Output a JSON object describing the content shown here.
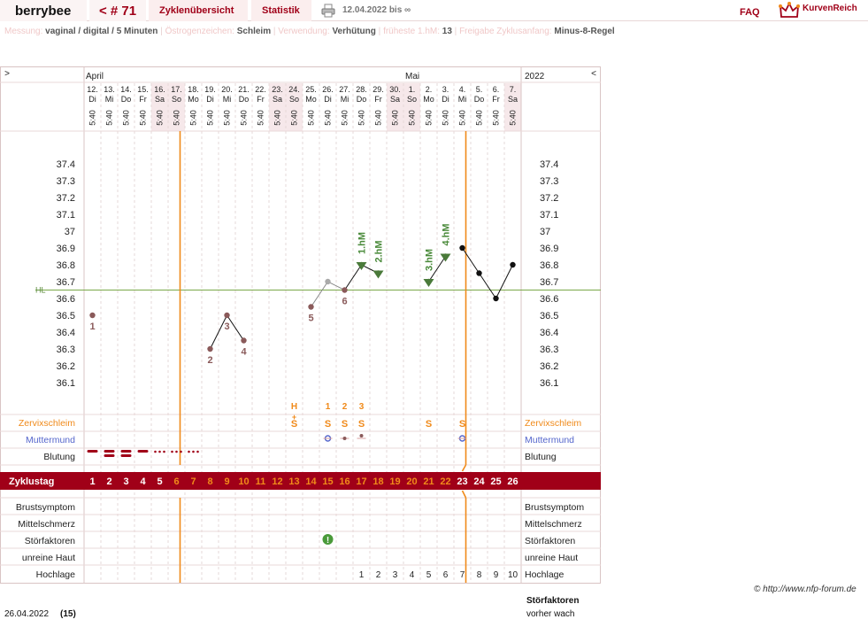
{
  "app": {
    "brand": "berrybee",
    "cycle_label": "< # 71",
    "tabs": [
      "Zyklenübersicht",
      "Statistik"
    ],
    "date_range": "12.04.2022 bis ∞",
    "faq": "FAQ",
    "logo": "KurvenReich"
  },
  "settings": [
    {
      "label": "Messung:",
      "value": "vaginal / digital / 5 Minuten"
    },
    {
      "label": "Östrogenzeichen:",
      "value": "Schleim"
    },
    {
      "label": "Verwendung:",
      "value": "Verhütung"
    },
    {
      "label": "früheste 1.hM:",
      "value": "13"
    },
    {
      "label": "Freigabe Zyklusanfang:",
      "value": "Minus-8-Regel"
    }
  ],
  "chart_data": {
    "type": "line",
    "year": "2022",
    "nav_prev": ">",
    "nav_next": "<",
    "months": [
      {
        "label": "April",
        "day_index": 0
      },
      {
        "label": "Mai",
        "day_index": 19
      }
    ],
    "days": [
      {
        "date": "12.",
        "wd": "Di",
        "time": "5:40",
        "we": false
      },
      {
        "date": "13.",
        "wd": "Mi",
        "time": "5:40",
        "we": false
      },
      {
        "date": "14.",
        "wd": "Do",
        "time": "5:40",
        "we": false
      },
      {
        "date": "15.",
        "wd": "Fr",
        "time": "5:40",
        "we": false
      },
      {
        "date": "16.",
        "wd": "Sa",
        "time": "5:40",
        "we": true
      },
      {
        "date": "17.",
        "wd": "So",
        "time": "5:40",
        "we": true
      },
      {
        "date": "18.",
        "wd": "Mo",
        "time": "5:40",
        "we": false
      },
      {
        "date": "19.",
        "wd": "Di",
        "time": "5:40",
        "we": false
      },
      {
        "date": "20.",
        "wd": "Mi",
        "time": "5:40",
        "we": false
      },
      {
        "date": "21.",
        "wd": "Do",
        "time": "5:40",
        "we": false
      },
      {
        "date": "22.",
        "wd": "Fr",
        "time": "5:40",
        "we": false
      },
      {
        "date": "23.",
        "wd": "Sa",
        "time": "5:40",
        "we": true
      },
      {
        "date": "24.",
        "wd": "So",
        "time": "5:40",
        "we": true
      },
      {
        "date": "25.",
        "wd": "Mo",
        "time": "5:40",
        "we": false
      },
      {
        "date": "26.",
        "wd": "Di",
        "time": "5:40",
        "we": false
      },
      {
        "date": "27.",
        "wd": "Mi",
        "time": "5:40",
        "we": false
      },
      {
        "date": "28.",
        "wd": "Do",
        "time": "5:40",
        "we": false
      },
      {
        "date": "29.",
        "wd": "Fr",
        "time": "5:40",
        "we": false
      },
      {
        "date": "30.",
        "wd": "Sa",
        "time": "5:40",
        "we": true
      },
      {
        "date": "1.",
        "wd": "So",
        "time": "5:40",
        "we": true
      },
      {
        "date": "2.",
        "wd": "Mo",
        "time": "5:40",
        "we": false
      },
      {
        "date": "3.",
        "wd": "Di",
        "time": "5:40",
        "we": false
      },
      {
        "date": "4.",
        "wd": "Mi",
        "time": "5:40",
        "we": false
      },
      {
        "date": "5.",
        "wd": "Do",
        "time": "5:40",
        "we": false
      },
      {
        "date": "6.",
        "wd": "Fr",
        "time": "5:40",
        "we": false
      },
      {
        "date": "7.",
        "wd": "Sa",
        "time": "5:40",
        "we": true
      }
    ],
    "y_ticks": [
      "37.4",
      "37.3",
      "37.2",
      "37.1",
      "37",
      "36.9",
      "36.8",
      "36.7",
      "36.6",
      "36.5",
      "36.4",
      "36.3",
      "36.2",
      "36.1"
    ],
    "ylim": [
      36.1,
      37.4
    ],
    "hl_value": 36.65,
    "hl_label": "HL",
    "vertical_markers": [
      5,
      22
    ],
    "temps": [
      {
        "day": 0,
        "value": 36.5,
        "label": "1",
        "color": "#8a5a5a"
      },
      {
        "day": 7,
        "value": 36.3,
        "label": "2",
        "color": "#8a5a5a"
      },
      {
        "day": 8,
        "value": 36.5,
        "label": "3",
        "color": "#8a5a5a"
      },
      {
        "day": 9,
        "value": 36.35,
        "label": "4",
        "color": "#8a5a5a"
      },
      {
        "day": 13,
        "value": 36.55,
        "label": "5",
        "color": "#8a5a5a"
      },
      {
        "day": 14,
        "value": 36.7,
        "label": "",
        "color": "#aaaaaa"
      },
      {
        "day": 15,
        "value": 36.65,
        "label": "6",
        "color": "#8a5a5a"
      },
      {
        "day": 16,
        "value": 36.8,
        "label": "",
        "color": "#5a8a3a"
      },
      {
        "day": 17,
        "value": 36.75,
        "label": "",
        "color": "#5a8a3a"
      },
      {
        "day": 20,
        "value": 36.7,
        "label": "",
        "color": "#5a8a3a"
      },
      {
        "day": 21,
        "value": 36.85,
        "label": "",
        "color": "#5a8a3a"
      },
      {
        "day": 22,
        "value": 36.9,
        "label": "",
        "color": "#111111"
      },
      {
        "day": 23,
        "value": 36.75,
        "label": "",
        "color": "#111111"
      },
      {
        "day": 24,
        "value": 36.6,
        "label": "",
        "color": "#111111"
      },
      {
        "day": 25,
        "value": 36.8,
        "label": "",
        "color": "#111111"
      }
    ],
    "segments": [
      [
        1,
        2,
        3
      ],
      [
        4,
        5,
        6
      ],
      [
        6,
        7,
        8
      ],
      [
        9,
        10
      ],
      [
        11,
        12,
        13,
        14
      ]
    ],
    "hm_labels": [
      {
        "day": 16,
        "value": 36.8,
        "text": "1.hM"
      },
      {
        "day": 17,
        "value": 36.75,
        "text": "2.hM"
      },
      {
        "day": 20,
        "value": 36.7,
        "text": "3.hM"
      },
      {
        "day": 21,
        "value": 36.85,
        "text": "4.hM"
      }
    ],
    "mucus_top": [
      {
        "day": 12,
        "text": "H"
      },
      {
        "day": 14,
        "text": "1"
      },
      {
        "day": 15,
        "text": "2"
      },
      {
        "day": 16,
        "text": "3"
      }
    ],
    "mucus_plus": {
      "day": 12,
      "text": "+"
    },
    "mucus_row": [
      12,
      14,
      15,
      16,
      20,
      22
    ],
    "mucus_symbol": "S",
    "cervix_days": [
      14,
      15,
      16,
      22
    ],
    "bleeding": [
      {
        "day": 0,
        "level": "heavy"
      },
      {
        "day": 1,
        "level": "heavy2"
      },
      {
        "day": 2,
        "level": "heavy2"
      },
      {
        "day": 3,
        "level": "heavy"
      },
      {
        "day": 4,
        "level": "light"
      },
      {
        "day": 5,
        "level": "light"
      },
      {
        "day": 6,
        "level": "light"
      }
    ],
    "disruption_day": 14,
    "cycle_days": [
      "1",
      "2",
      "3",
      "4",
      "5",
      "6",
      "7",
      "8",
      "9",
      "10",
      "11",
      "12",
      "13",
      "14",
      "15",
      "16",
      "17",
      "18",
      "19",
      "20",
      "21",
      "22",
      "23",
      "24",
      "25",
      "26"
    ],
    "highphase_numbers": [
      {
        "day": 16,
        "n": "1"
      },
      {
        "day": 17,
        "n": "2"
      },
      {
        "day": 18,
        "n": "3"
      },
      {
        "day": 19,
        "n": "4"
      },
      {
        "day": 20,
        "n": "5"
      },
      {
        "day": 21,
        "n": "6"
      },
      {
        "day": 22,
        "n": "7"
      },
      {
        "day": 23,
        "n": "8"
      },
      {
        "day": 24,
        "n": "9"
      },
      {
        "day": 25,
        "n": "10"
      }
    ],
    "rows_left": {
      "zervix": "Zervixschleim",
      "mumu": "Muttermund",
      "blutung": "Blutung",
      "zyklustag": "Zyklustag",
      "brust": "Brustsymptom",
      "mittel": "Mittelschmerz",
      "stoer": "Störfaktoren",
      "haut": "unreine Haut",
      "hoch": "Hochlage"
    },
    "rows_right": {
      "zervix": "Zervixschleim",
      "mumu": "Muttermund",
      "blutung": "Blutung",
      "brust": "Brustsymptom",
      "mittel": "Mittelschmerz",
      "stoer": "Störfaktoren",
      "haut": "unreine Haut",
      "hoch": "Hochlage"
    }
  },
  "footer": {
    "date": "26.04.2022",
    "count": "(15)",
    "copyright": "© http://www.nfp-forum.de",
    "note_title": "Störfaktoren",
    "note_text": "vorher wach"
  },
  "colors": {
    "accent": "#a00018",
    "orange": "#f08a1a",
    "hl_line": "#7aa84a",
    "grid": "#e6d8d8",
    "weekend": "#f6e8ea",
    "cervix": "#5566cc"
  }
}
